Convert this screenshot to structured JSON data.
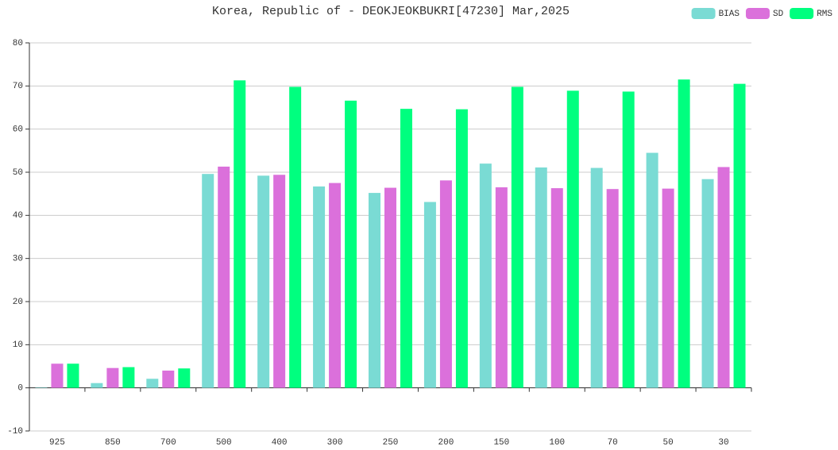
{
  "chart_data": {
    "type": "bar",
    "title": "Korea, Republic of - DEOKJEOKBUKRI[47230] Mar,2025",
    "categories": [
      "925",
      "850",
      "700",
      "500",
      "400",
      "300",
      "250",
      "200",
      "150",
      "100",
      "70",
      "50",
      "30"
    ],
    "series": [
      {
        "name": "BIAS",
        "color": "#7adbd4",
        "values": [
          0.1,
          1.1,
          2.1,
          49.6,
          49.2,
          46.7,
          45.2,
          43.1,
          52.0,
          51.1,
          51.0,
          54.5,
          48.4
        ]
      },
      {
        "name": "SD",
        "color": "#db70db",
        "values": [
          5.6,
          4.6,
          4.0,
          51.3,
          49.4,
          47.5,
          46.4,
          48.1,
          46.5,
          46.3,
          46.1,
          46.2,
          51.2
        ]
      },
      {
        "name": "RMS",
        "color": "#00ff7f",
        "values": [
          5.6,
          4.8,
          4.5,
          71.3,
          69.8,
          66.6,
          64.7,
          64.6,
          69.8,
          68.9,
          68.7,
          71.5,
          70.5
        ]
      }
    ],
    "ylim": [
      -10,
      80
    ],
    "yticks": [
      -10,
      0,
      10,
      20,
      30,
      40,
      50,
      60,
      70,
      80
    ],
    "grid": true,
    "legend": "top-right"
  }
}
